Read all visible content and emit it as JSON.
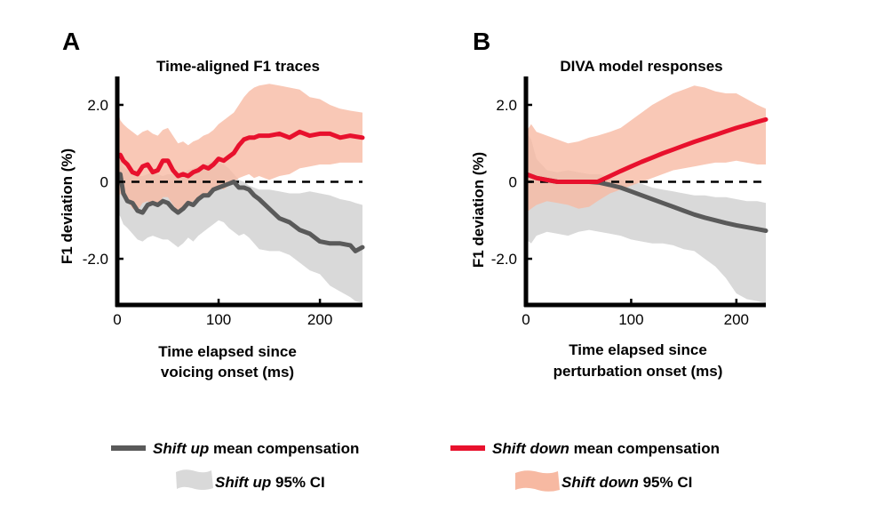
{
  "colors": {
    "shift_up_line": "#5a5a5a",
    "shift_down_line": "#e8112d",
    "shift_up_ci": "#d9d9d9",
    "shift_down_ci": "#f7b9a2",
    "overlap_ci": "#e8a48d"
  },
  "legend": {
    "up_line": {
      "italic": "Shift up",
      "text": " mean compensation"
    },
    "down_line": {
      "italic": "Shift down",
      "text": " mean compensation"
    },
    "up_ci": {
      "italic": "Shift up",
      "text": " 95% CI"
    },
    "down_ci": {
      "italic": "Shift down",
      "text": " 95% CI"
    }
  },
  "chart_data": [
    {
      "panel": "A",
      "type": "line",
      "title": "Time-aligned F1 traces",
      "xlabel": [
        "Time elapsed since",
        "voicing onset (ms)"
      ],
      "ylabel": "F1 deviation (%)",
      "xlim": [
        0,
        242
      ],
      "ylim": [
        -3.2,
        2.6
      ],
      "xticks": [
        0,
        100,
        200
      ],
      "xtick_labels": [
        "0",
        "100",
        "200"
      ],
      "yticks": [
        -2,
        0,
        2
      ],
      "ytick_labels": [
        "-2.0",
        "0",
        "2.0"
      ],
      "reference_line": 0,
      "series": [
        {
          "name": "Shift up",
          "x": [
            0,
            3,
            6,
            10,
            15,
            20,
            25,
            30,
            35,
            40,
            45,
            50,
            55,
            60,
            65,
            70,
            75,
            80,
            85,
            90,
            95,
            100,
            105,
            110,
            115,
            120,
            125,
            130,
            135,
            140,
            150,
            160,
            170,
            180,
            190,
            200,
            210,
            220,
            230,
            235,
            242
          ],
          "y": [
            0.1,
            0.2,
            -0.3,
            -0.5,
            -0.55,
            -0.75,
            -0.8,
            -0.6,
            -0.55,
            -0.6,
            -0.5,
            -0.55,
            -0.7,
            -0.8,
            -0.7,
            -0.55,
            -0.6,
            -0.45,
            -0.35,
            -0.35,
            -0.2,
            -0.15,
            -0.1,
            -0.05,
            0.0,
            -0.15,
            -0.15,
            -0.2,
            -0.35,
            -0.45,
            -0.7,
            -0.95,
            -1.05,
            -1.25,
            -1.35,
            -1.55,
            -1.6,
            -1.6,
            -1.65,
            -1.8,
            -1.7
          ],
          "ci_upper": [
            1.0,
            0.8,
            0.4,
            0.3,
            0.2,
            0.15,
            0.15,
            0.2,
            0.25,
            0.2,
            0.15,
            0.2,
            0.2,
            0.15,
            0.2,
            0.3,
            0.35,
            0.4,
            0.45,
            0.5,
            0.55,
            0.5,
            0.45,
            0.35,
            0.2,
            0.05,
            0.0,
            -0.1,
            -0.15,
            -0.2,
            -0.2,
            -0.25,
            -0.3,
            -0.3,
            -0.25,
            -0.3,
            -0.35,
            -0.45,
            -0.5,
            -0.55,
            -0.6
          ],
          "ci_lower": [
            -0.8,
            -0.9,
            -1.1,
            -1.2,
            -1.35,
            -1.5,
            -1.55,
            -1.45,
            -1.4,
            -1.45,
            -1.5,
            -1.5,
            -1.6,
            -1.7,
            -1.6,
            -1.45,
            -1.55,
            -1.4,
            -1.3,
            -1.2,
            -1.1,
            -1.0,
            -1.05,
            -1.2,
            -1.3,
            -1.4,
            -1.35,
            -1.45,
            -1.6,
            -1.75,
            -1.8,
            -1.8,
            -1.9,
            -2.1,
            -2.3,
            -2.4,
            -2.7,
            -2.85,
            -3.0,
            -3.1,
            -3.15
          ]
        },
        {
          "name": "Shift down",
          "x": [
            0,
            3,
            6,
            10,
            15,
            20,
            25,
            30,
            35,
            40,
            45,
            50,
            55,
            60,
            65,
            70,
            75,
            80,
            85,
            90,
            95,
            100,
            105,
            110,
            115,
            120,
            125,
            130,
            135,
            140,
            150,
            160,
            170,
            180,
            190,
            200,
            210,
            220,
            230,
            242
          ],
          "y": [
            0.65,
            0.7,
            0.55,
            0.45,
            0.25,
            0.2,
            0.4,
            0.45,
            0.25,
            0.3,
            0.55,
            0.55,
            0.3,
            0.15,
            0.2,
            0.15,
            0.25,
            0.3,
            0.4,
            0.35,
            0.45,
            0.6,
            0.55,
            0.65,
            0.75,
            0.95,
            1.1,
            1.15,
            1.15,
            1.2,
            1.2,
            1.25,
            1.15,
            1.3,
            1.2,
            1.25,
            1.25,
            1.15,
            1.2,
            1.15
          ],
          "ci_upper": [
            1.9,
            1.6,
            1.5,
            1.4,
            1.3,
            1.2,
            1.3,
            1.35,
            1.25,
            1.2,
            1.35,
            1.4,
            1.2,
            1.0,
            1.05,
            0.95,
            1.05,
            1.1,
            1.2,
            1.25,
            1.35,
            1.5,
            1.6,
            1.7,
            1.8,
            2.0,
            2.2,
            2.35,
            2.45,
            2.5,
            2.55,
            2.5,
            2.45,
            2.4,
            2.2,
            2.15,
            2.0,
            1.9,
            1.85,
            1.8
          ],
          "ci_lower": [
            -0.5,
            -0.3,
            -0.4,
            -0.5,
            -0.7,
            -0.75,
            -0.55,
            -0.5,
            -0.6,
            -0.65,
            -0.4,
            -0.4,
            -0.6,
            -0.75,
            -0.7,
            -0.6,
            -0.5,
            -0.4,
            -0.35,
            -0.3,
            -0.2,
            -0.15,
            -0.2,
            -0.1,
            0.0,
            0.1,
            0.15,
            0.2,
            0.1,
            0.15,
            0.05,
            0.15,
            0.2,
            0.35,
            0.4,
            0.45,
            0.45,
            0.5,
            0.5,
            0.5
          ]
        }
      ]
    },
    {
      "panel": "B",
      "type": "line",
      "title": "DIVA model responses",
      "xlabel": [
        "Time elapsed since",
        "perturbation onset (ms)"
      ],
      "ylabel": "F1 deviation (%)",
      "xlim": [
        0,
        228
      ],
      "ylim": [
        -3.2,
        2.6
      ],
      "xticks": [
        0,
        100,
        200
      ],
      "xtick_labels": [
        "0",
        "100",
        "200"
      ],
      "yticks": [
        -2,
        0,
        2
      ],
      "ytick_labels": [
        "-2.0",
        "0",
        "2.0"
      ],
      "reference_line": 0,
      "series": [
        {
          "name": "Shift up",
          "x": [
            0,
            5,
            10,
            20,
            30,
            40,
            50,
            60,
            70,
            80,
            90,
            100,
            110,
            120,
            130,
            140,
            150,
            160,
            170,
            180,
            190,
            200,
            210,
            220,
            228
          ],
          "y": [
            0.2,
            0.15,
            0.1,
            0.05,
            0.0,
            0.0,
            0.0,
            0.0,
            -0.02,
            -0.08,
            -0.15,
            -0.25,
            -0.35,
            -0.45,
            -0.55,
            -0.65,
            -0.75,
            -0.85,
            -0.93,
            -1.0,
            -1.07,
            -1.13,
            -1.18,
            -1.23,
            -1.27
          ],
          "ci_upper": [
            1.3,
            1.1,
            0.6,
            0.3,
            0.25,
            0.3,
            0.25,
            0.2,
            0.2,
            0.1,
            0.05,
            0.0,
            -0.05,
            -0.15,
            -0.2,
            -0.25,
            -0.3,
            -0.35,
            -0.35,
            -0.4,
            -0.4,
            -0.45,
            -0.5,
            -0.5,
            -0.55
          ],
          "ci_lower": [
            -1.5,
            -1.6,
            -1.4,
            -1.3,
            -1.35,
            -1.4,
            -1.3,
            -1.25,
            -1.3,
            -1.35,
            -1.4,
            -1.5,
            -1.55,
            -1.6,
            -1.6,
            -1.65,
            -1.75,
            -1.8,
            -2.0,
            -2.2,
            -2.5,
            -2.9,
            -3.05,
            -3.1,
            -3.15
          ]
        },
        {
          "name": "Shift down",
          "x": [
            0,
            5,
            10,
            20,
            30,
            40,
            50,
            60,
            68,
            80,
            90,
            100,
            110,
            120,
            130,
            140,
            150,
            160,
            170,
            180,
            190,
            200,
            210,
            220,
            228
          ],
          "y": [
            0.2,
            0.15,
            0.1,
            0.05,
            0.0,
            0.0,
            0.0,
            0.0,
            0.0,
            0.15,
            0.28,
            0.4,
            0.52,
            0.63,
            0.74,
            0.84,
            0.94,
            1.04,
            1.13,
            1.22,
            1.31,
            1.4,
            1.48,
            1.56,
            1.62
          ],
          "ci_upper": [
            1.3,
            1.5,
            1.3,
            1.2,
            1.1,
            1.0,
            1.05,
            1.15,
            1.2,
            1.3,
            1.4,
            1.6,
            1.8,
            2.0,
            2.15,
            2.3,
            2.4,
            2.5,
            2.45,
            2.35,
            2.3,
            2.3,
            2.15,
            2.0,
            1.9
          ],
          "ci_lower": [
            -0.8,
            -0.7,
            -0.6,
            -0.5,
            -0.55,
            -0.6,
            -0.7,
            -0.65,
            -0.5,
            -0.3,
            -0.2,
            -0.1,
            0.0,
            0.1,
            0.2,
            0.3,
            0.35,
            0.4,
            0.45,
            0.5,
            0.5,
            0.55,
            0.5,
            0.45,
            0.45
          ]
        }
      ]
    }
  ]
}
